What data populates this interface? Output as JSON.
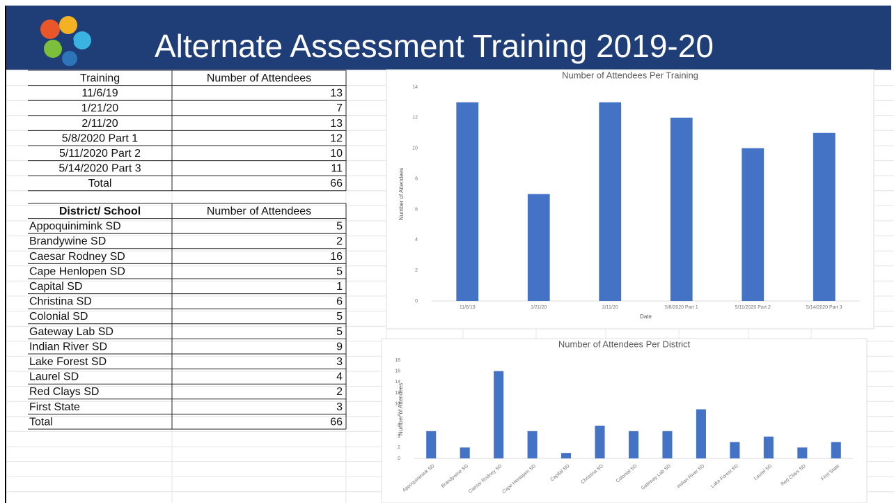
{
  "header": {
    "title": "Alternate Assessment Training 2019-20"
  },
  "training_table": {
    "columns": [
      "Training",
      "Number of Attendees"
    ],
    "rows": [
      [
        "11/6/19",
        "13"
      ],
      [
        "1/21/20",
        "7"
      ],
      [
        "2/11/20",
        "13"
      ],
      [
        "5/8/2020 Part 1",
        "12"
      ],
      [
        "5/11/2020 Part 2",
        "10"
      ],
      [
        "5/14/2020 Part 3",
        "11"
      ]
    ],
    "total": [
      "Total",
      "66"
    ]
  },
  "district_table": {
    "columns": [
      "District/ School",
      "Number of Attendees"
    ],
    "rows": [
      [
        "Appoquinimink SD",
        "5"
      ],
      [
        "Brandywine SD",
        "2"
      ],
      [
        "Caesar Rodney SD",
        "16"
      ],
      [
        "Cape Henlopen SD",
        "5"
      ],
      [
        "Capital SD",
        "1"
      ],
      [
        "Christina SD",
        "6"
      ],
      [
        "Colonial SD",
        "5"
      ],
      [
        "Gateway Lab SD",
        "5"
      ],
      [
        "Indian River SD",
        "9"
      ],
      [
        "Lake Forest SD",
        "3"
      ],
      [
        "Laurel SD",
        "4"
      ],
      [
        "Red Clays SD",
        "2"
      ],
      [
        "First State",
        "3"
      ]
    ],
    "total": [
      "Total",
      "66"
    ]
  },
  "chart_data": [
    {
      "type": "bar",
      "title": "Number of Attendees Per Training",
      "x_label": "Date",
      "y_label": "Number of Attendees",
      "categories": [
        "11/6/19",
        "1/21/20",
        "2/11/20",
        "5/8/2020 Part 1",
        "5/11/2020 Part 2",
        "5/14/2020 Part 3"
      ],
      "values": [
        13,
        7,
        13,
        12,
        10,
        11
      ],
      "color": "#4472c4",
      "ylim": [
        0,
        14
      ],
      "yticks": [
        0,
        2,
        4,
        6,
        8,
        10,
        12,
        14
      ]
    },
    {
      "type": "bar",
      "title": "Number of Attendees Per District",
      "y_label": "Number of Attendees",
      "categories": [
        "Appoquinimink SD",
        "Brandywine SD",
        "Caesar Rodney SD",
        "Cape Henlopen SD",
        "Capital SD",
        "Christina SD",
        "Colonial SD",
        "Gateway Lab SD",
        "Indian River SD",
        "Lake Forest SD",
        "Laurel SD",
        "Red Clays SD",
        "First State"
      ],
      "values": [
        5,
        2,
        16,
        5,
        1,
        6,
        5,
        5,
        9,
        3,
        4,
        2,
        3
      ],
      "color": "#4472c4",
      "ylim": [
        0,
        18
      ],
      "yticks": [
        0,
        2,
        4,
        6,
        8,
        10,
        12,
        14,
        16,
        18
      ]
    }
  ]
}
